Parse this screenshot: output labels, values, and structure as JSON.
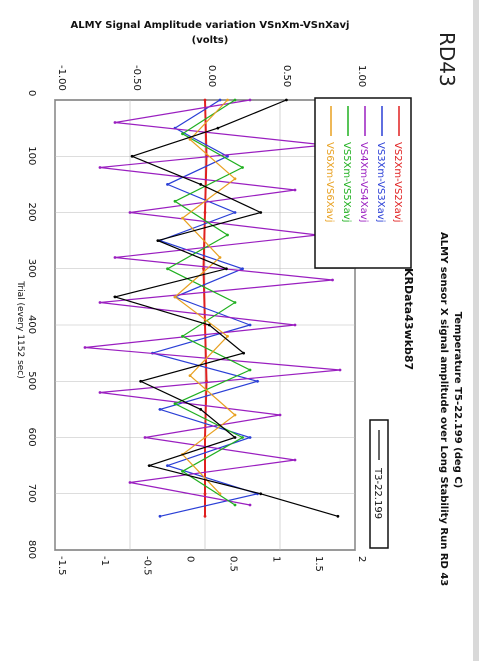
{
  "handwritten_label": "RD43",
  "chart_data": {
    "type": "line",
    "orientation": "rotated-90-clockwise",
    "title": "ALMY Signal Amplitude variation VSnXm-VSnXavj",
    "title_units": "(volts)",
    "side_title": "ALMY sensor X signal amplitude over Long Stability Run RD 43",
    "subtitle": "KRData43wkb87",
    "xlabel": "Trial (every 1152 sec)",
    "ylabel_right": "Temperature T5-22.199 (deg C)",
    "xlim": [
      0,
      800
    ],
    "ylim_left": [
      -1.0,
      1.0
    ],
    "ylim_right": [
      -1.5,
      2.0
    ],
    "x_ticks": [
      "0",
      "100",
      "200",
      "300",
      "400",
      "500",
      "600",
      "700",
      "800"
    ],
    "y_ticks_left": [
      "-1.00",
      "-0.50",
      "0.00",
      "0.50",
      "1.00"
    ],
    "y_ticks_right": [
      "-1.5",
      "-1",
      "-0.5",
      "0",
      "0.5",
      "1",
      "1.5",
      "2"
    ],
    "legend_left": [
      {
        "name": "VS2Xm-VS2Xavj",
        "color": "#e02020"
      },
      {
        "name": "VS3Xm-VS3Xavj",
        "color": "#2a3fd6"
      },
      {
        "name": "VS4Xm-VS4Xavj",
        "color": "#9a1fc0"
      },
      {
        "name": "VS5Xm-VS5Xavj",
        "color": "#20b020"
      },
      {
        "name": "VS6Xm-VS6Xavj",
        "color": "#e8a020"
      }
    ],
    "legend_right": [
      {
        "name": "T3-22.199",
        "color": "#000000"
      }
    ],
    "series": [
      {
        "key": "VS2",
        "color": "#e02020",
        "x": [
          0,
          100,
          200,
          300,
          400,
          500,
          600,
          700,
          740
        ],
        "values": [
          0.0,
          0.01,
          0.0,
          -0.01,
          0.0,
          0.01,
          0.0,
          0.0,
          0.0
        ]
      },
      {
        "key": "VS3",
        "color": "#2a3fd6",
        "x": [
          0,
          50,
          100,
          150,
          200,
          250,
          300,
          350,
          400,
          450,
          500,
          550,
          600,
          650,
          700,
          740
        ],
        "values": [
          0.1,
          -0.2,
          0.15,
          -0.25,
          0.2,
          -0.3,
          0.25,
          -0.2,
          0.3,
          -0.35,
          0.35,
          -0.3,
          0.3,
          -0.25,
          0.35,
          -0.3
        ]
      },
      {
        "key": "VS4",
        "color": "#9a1fc0",
        "x": [
          0,
          40,
          80,
          120,
          160,
          200,
          240,
          280,
          320,
          360,
          400,
          440,
          480,
          520,
          560,
          600,
          640,
          680,
          720
        ],
        "values": [
          0.3,
          -0.6,
          0.8,
          -0.7,
          0.6,
          -0.5,
          0.75,
          -0.6,
          0.85,
          -0.7,
          0.6,
          -0.8,
          0.9,
          -0.7,
          0.5,
          -0.4,
          0.6,
          -0.5,
          0.3
        ]
      },
      {
        "key": "VS5",
        "color": "#20b020",
        "x": [
          0,
          60,
          120,
          180,
          240,
          300,
          360,
          420,
          480,
          540,
          600,
          660,
          720
        ],
        "values": [
          0.2,
          -0.15,
          0.25,
          -0.2,
          0.15,
          -0.25,
          0.2,
          -0.15,
          0.3,
          -0.2,
          0.25,
          -0.15,
          0.2
        ]
      },
      {
        "key": "VS6",
        "color": "#e8a020",
        "x": [
          0,
          70,
          140,
          210,
          280,
          350,
          420,
          490,
          560,
          630,
          700
        ],
        "values": [
          0.15,
          -0.1,
          0.2,
          -0.15,
          0.1,
          -0.2,
          0.15,
          -0.1,
          0.2,
          -0.15,
          0.1
        ]
      },
      {
        "key": "T3",
        "color": "#000000",
        "axis": "right",
        "x": [
          0,
          50,
          100,
          150,
          200,
          250,
          300,
          350,
          400,
          450,
          500,
          550,
          600,
          650,
          700,
          740
        ],
        "values": [
          1.2,
          0.4,
          -0.6,
          0.2,
          0.9,
          -0.3,
          0.5,
          -0.8,
          0.3,
          0.7,
          -0.5,
          0.2,
          0.6,
          -0.4,
          0.9,
          1.8
        ]
      }
    ]
  }
}
